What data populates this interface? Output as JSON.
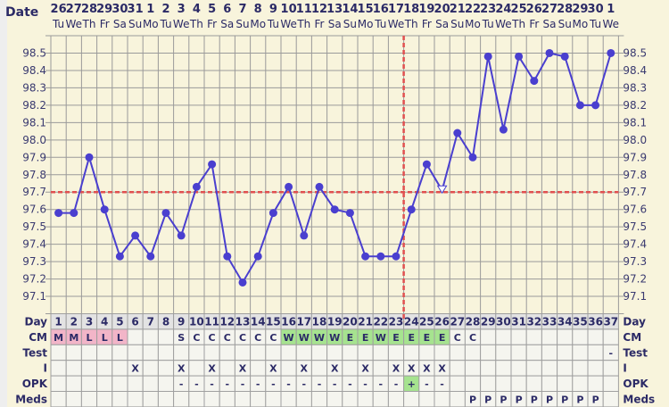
{
  "chart_data": {
    "type": "line",
    "title": "",
    "date_label": "Date",
    "dates": [
      "26",
      "27",
      "28",
      "29",
      "30",
      "31",
      "1",
      "2",
      "3",
      "4",
      "5",
      "6",
      "7",
      "8",
      "9",
      "10",
      "11",
      "12",
      "13",
      "14",
      "15",
      "16",
      "17",
      "18",
      "19",
      "20",
      "21",
      "22",
      "23",
      "24",
      "25",
      "26",
      "27",
      "28",
      "29",
      "30",
      "1"
    ],
    "weekdays": [
      "Tu",
      "We",
      "Th",
      "Fr",
      "Sa",
      "Su",
      "Mo",
      "Tu",
      "We",
      "Th",
      "Fr",
      "Sa",
      "Su",
      "Mo",
      "Tu",
      "We",
      "Th",
      "Fr",
      "Sa",
      "Su",
      "Mo",
      "Tu",
      "We",
      "Th",
      "Fr",
      "Sa",
      "Su",
      "Mo",
      "Tu",
      "We",
      "Th",
      "Fr",
      "Sa",
      "Su",
      "Mo",
      "Tu",
      "We"
    ],
    "days": [
      1,
      2,
      3,
      4,
      5,
      6,
      7,
      8,
      9,
      10,
      11,
      12,
      13,
      14,
      15,
      16,
      17,
      18,
      19,
      20,
      21,
      22,
      23,
      24,
      25,
      26,
      27,
      28,
      29,
      30,
      31,
      32,
      33,
      34,
      35,
      36,
      37
    ],
    "temps": [
      97.58,
      97.58,
      97.9,
      97.6,
      97.33,
      97.45,
      97.33,
      97.58,
      97.45,
      97.73,
      97.86,
      97.33,
      97.18,
      97.33,
      97.58,
      97.73,
      97.45,
      97.73,
      97.6,
      97.58,
      97.33,
      97.33,
      97.33,
      97.6,
      97.86,
      97.71,
      98.04,
      97.9,
      98.48,
      98.06,
      98.48,
      98.34,
      98.5,
      98.48,
      98.2,
      98.2,
      98.5
    ],
    "discarded_days": [
      26
    ],
    "y_ticks": [
      "98.5",
      "98.4",
      "98.3",
      "98.2",
      "98.1",
      "98.0",
      "97.9",
      "97.8",
      "97.7",
      "97.6",
      "97.5",
      "97.4",
      "97.3",
      "97.2",
      "97.1"
    ],
    "ylim": [
      97.0,
      98.6
    ],
    "coverline": 97.7,
    "ovulation_day": 24,
    "grid": true,
    "colors": {
      "line": "#4a3fcf",
      "coverline": "#e05050",
      "background": "#f8f4dc",
      "grid": "#9a9a9a",
      "menstrual": "#f2b5c8",
      "fertile": "#a6e38f",
      "label": "#2b2a66"
    }
  },
  "table": {
    "rows": [
      {
        "label": "Day",
        "key": "day"
      },
      {
        "label": "CM",
        "values": [
          "M",
          "M",
          "L",
          "L",
          "L",
          "",
          "",
          "",
          "S",
          "C",
          "C",
          "C",
          "C",
          "C",
          "C",
          "W",
          "W",
          "W",
          "W",
          "E",
          "E",
          "W",
          "E",
          "E",
          "E",
          "E",
          "C",
          "C",
          "",
          "",
          "",
          "",
          "",
          "",
          "",
          "",
          ""
        ]
      },
      {
        "label": "Test",
        "values": [
          "",
          "",
          "",
          "",
          "",
          "",
          "",
          "",
          "",
          "",
          "",
          "",
          "",
          "",
          "",
          "",
          "",
          "",
          "",
          "",
          "",
          "",
          "",
          "",
          "",
          "",
          "",
          "",
          "",
          "",
          "",
          "",
          "",
          "",
          "",
          "",
          "-"
        ]
      },
      {
        "label": "I",
        "values": [
          "",
          "",
          "",
          "",
          "",
          "X",
          "",
          "",
          "X",
          "",
          "X",
          "",
          "X",
          "",
          "X",
          "",
          "X",
          "",
          "X",
          "",
          "X",
          "",
          "X",
          "X",
          "X",
          "X",
          "",
          "",
          "",
          "",
          "",
          "",
          "",
          "",
          "",
          "",
          ""
        ]
      },
      {
        "label": "OPK",
        "values": [
          "",
          "",
          "",
          "",
          "",
          "",
          "",
          "",
          "-",
          "-",
          "-",
          "-",
          "-",
          "-",
          "-",
          "-",
          "-",
          "-",
          "-",
          "-",
          "-",
          "-",
          "-",
          "+",
          "-",
          "-",
          "",
          "",
          "",
          "",
          "",
          "",
          "",
          "",
          "",
          "",
          ""
        ]
      },
      {
        "label": "Meds",
        "values": [
          "",
          "",
          "",
          "",
          "",
          "",
          "",
          "",
          "",
          "",
          "",
          "",
          "",
          "",
          "",
          "",
          "",
          "",
          "",
          "",
          "",
          "",
          "",
          "",
          "",
          "",
          "",
          "P",
          "P",
          "P",
          "P",
          "P",
          "P",
          "P",
          "P",
          "P",
          ""
        ]
      }
    ]
  }
}
